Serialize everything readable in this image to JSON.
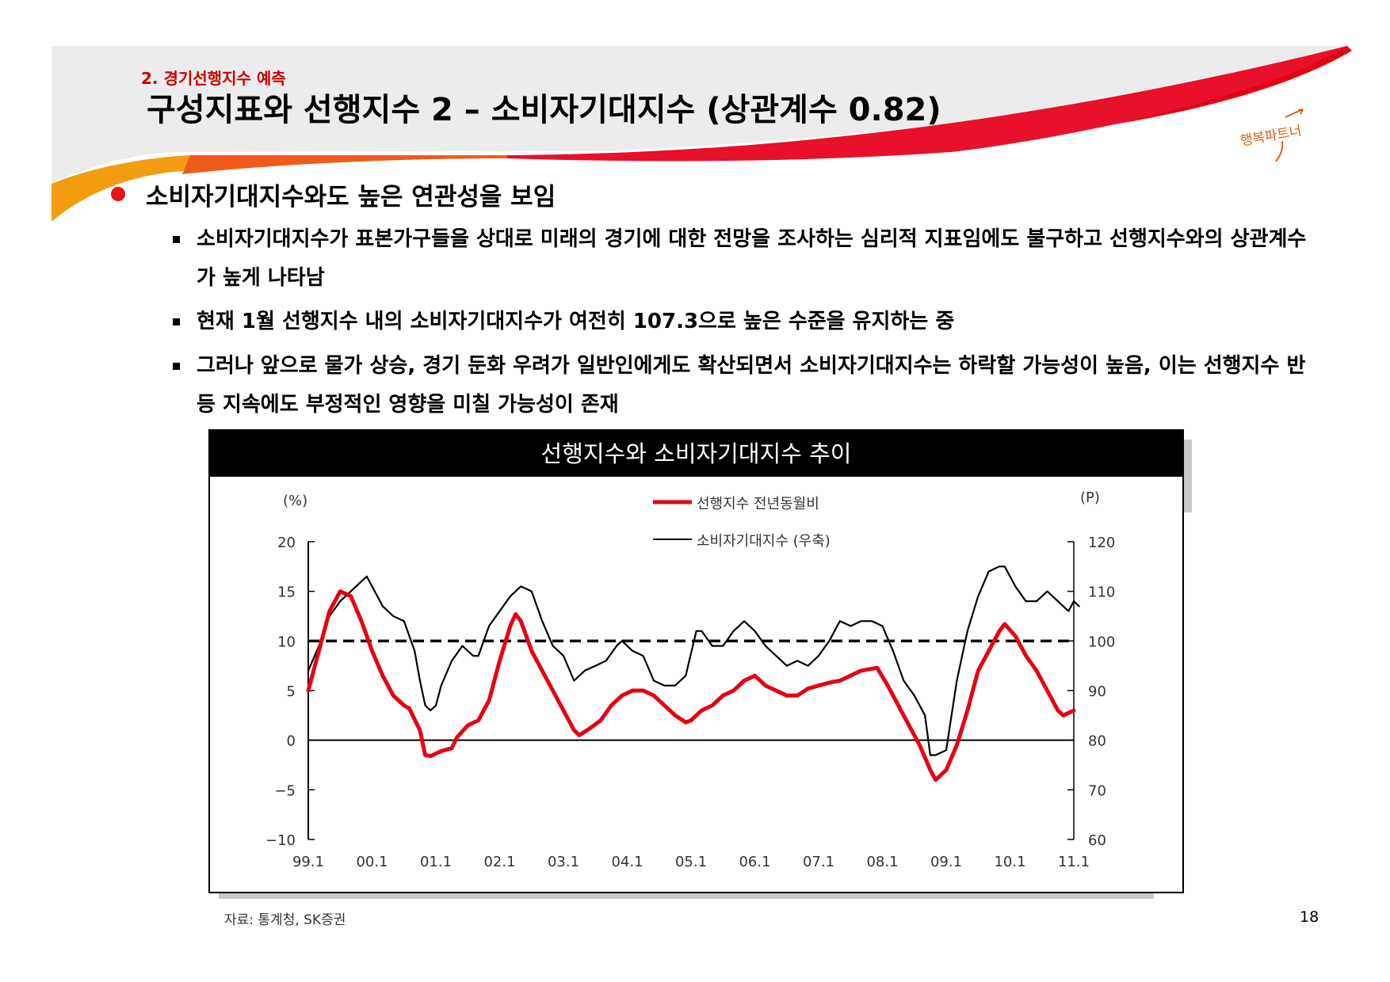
{
  "header": {
    "section_label": "2. 경기선행지수 예측",
    "title": "구성지표와 선행지수 2 – 소비자기대지수 (상관계수 0.82)",
    "logo_text": "행복파트너"
  },
  "content": {
    "main_bullet": "소비자기대지수와도 높은 연관성을 보임",
    "sub_bullets": [
      "소비자기대지수가 표본가구들을 상대로 미래의 경기에 대한 전망을 조사하는 심리적 지표임에도 불구하고 선행지수와의 상관계수가 높게 나타남",
      "현재 1월 선행지수 내의 소비자기대지수가 여전히 107.3으로 높은 수준을 유지하는 중",
      "그러나 앞으로 물가 상승, 경기 둔화 우려가 일반인에게도 확산되면서 소비자기대지수는 하락할 가능성이 높음, 이는 선행지수 반등 지속에도 부정적인 영향을 미칠 가능성이 존재"
    ]
  },
  "colors": {
    "accent_red": "#e60012",
    "accent_orange": "#f39c12",
    "black": "#000000"
  },
  "chart_data": {
    "type": "line",
    "title": "선행지수와 소비자기대지수 추이",
    "left_axis_unit": "(%)",
    "right_axis_unit": "(P)",
    "left_ticks": [
      "20",
      "15",
      "10",
      "5",
      "0",
      "−5",
      "−10"
    ],
    "right_ticks": [
      "120",
      "110",
      "100",
      "90",
      "80",
      "70",
      "60"
    ],
    "x_ticks": [
      "99.1",
      "00.1",
      "01.1",
      "02.1",
      "03.1",
      "04.1",
      "05.1",
      "06.1",
      "07.1",
      "08.1",
      "09.1",
      "10.1",
      "11.1"
    ],
    "ylim_left": [
      -10,
      20
    ],
    "ylim_right": [
      60,
      120
    ],
    "reference_line": {
      "axis": "left",
      "value": 10,
      "style": "dashed"
    },
    "legend": [
      "선행지수 전년동월비",
      "소비자기대지수 (우축)"
    ],
    "series": [
      {
        "name": "선행지수 전년동월비",
        "axis": "left",
        "color": "#e60012",
        "points": [
          [
            0,
            5
          ],
          [
            2,
            9
          ],
          [
            4,
            13
          ],
          [
            6,
            15
          ],
          [
            8,
            14.5
          ],
          [
            10,
            12
          ],
          [
            12,
            9
          ],
          [
            14,
            6.5
          ],
          [
            16,
            4.5
          ],
          [
            18,
            3.5
          ],
          [
            19,
            3.2
          ],
          [
            21,
            1
          ],
          [
            22,
            -1.5
          ],
          [
            23,
            -1.6
          ],
          [
            25,
            -1.1
          ],
          [
            27,
            -0.8
          ],
          [
            28,
            0.3
          ],
          [
            30,
            1.5
          ],
          [
            32,
            2
          ],
          [
            34,
            4
          ],
          [
            36,
            8
          ],
          [
            38,
            11.5
          ],
          [
            39,
            12.7
          ],
          [
            40,
            12
          ],
          [
            42,
            9
          ],
          [
            44,
            7
          ],
          [
            46,
            5
          ],
          [
            48,
            3
          ],
          [
            50,
            1
          ],
          [
            51,
            0.5
          ],
          [
            53,
            1.2
          ],
          [
            55,
            2
          ],
          [
            57,
            3.5
          ],
          [
            59,
            4.5
          ],
          [
            61,
            5
          ],
          [
            63,
            5
          ],
          [
            65,
            4.5
          ],
          [
            67,
            3.5
          ],
          [
            69,
            2.5
          ],
          [
            71,
            1.8
          ],
          [
            72,
            2
          ],
          [
            74,
            3
          ],
          [
            76,
            3.5
          ],
          [
            78,
            4.5
          ],
          [
            80,
            5
          ],
          [
            82,
            6
          ],
          [
            84,
            6.5
          ],
          [
            86,
            5.5
          ],
          [
            88,
            5
          ],
          [
            90,
            4.5
          ],
          [
            92,
            4.5
          ],
          [
            94,
            5.2
          ],
          [
            96,
            5.5
          ],
          [
            98,
            5.8
          ],
          [
            100,
            6
          ],
          [
            102,
            6.5
          ],
          [
            104,
            7
          ],
          [
            106,
            7.2
          ],
          [
            107,
            7.3
          ],
          [
            109,
            5.5
          ],
          [
            111,
            3.5
          ],
          [
            113,
            1.5
          ],
          [
            115,
            -0.5
          ],
          [
            117,
            -3
          ],
          [
            118,
            -4
          ],
          [
            120,
            -3
          ],
          [
            122,
            -0.5
          ],
          [
            124,
            3
          ],
          [
            126,
            7
          ],
          [
            128,
            9
          ],
          [
            130,
            11
          ],
          [
            131,
            11.7
          ],
          [
            133,
            10.5
          ],
          [
            135,
            8.5
          ],
          [
            137,
            7
          ],
          [
            139,
            5
          ],
          [
            141,
            3
          ],
          [
            142,
            2.5
          ],
          [
            144,
            3
          ]
        ]
      },
      {
        "name": "소비자기대지수 (우축)",
        "axis": "right",
        "color": "#000000",
        "points": [
          [
            0,
            94
          ],
          [
            2,
            99
          ],
          [
            4,
            105
          ],
          [
            6,
            108
          ],
          [
            8,
            110
          ],
          [
            10,
            112
          ],
          [
            11,
            113
          ],
          [
            12,
            111
          ],
          [
            14,
            107
          ],
          [
            16,
            105
          ],
          [
            18,
            104
          ],
          [
            20,
            98
          ],
          [
            21,
            92
          ],
          [
            22,
            87
          ],
          [
            23,
            86
          ],
          [
            24,
            87
          ],
          [
            25,
            91
          ],
          [
            27,
            96
          ],
          [
            29,
            99
          ],
          [
            31,
            97
          ],
          [
            32,
            97
          ],
          [
            34,
            103
          ],
          [
            36,
            106
          ],
          [
            38,
            109
          ],
          [
            40,
            111
          ],
          [
            42,
            110
          ],
          [
            44,
            104
          ],
          [
            46,
            99
          ],
          [
            48,
            97
          ],
          [
            50,
            92
          ],
          [
            52,
            94
          ],
          [
            54,
            95
          ],
          [
            56,
            96
          ],
          [
            58,
            99
          ],
          [
            59,
            100
          ],
          [
            61,
            98
          ],
          [
            63,
            97
          ],
          [
            65,
            92
          ],
          [
            67,
            91
          ],
          [
            69,
            91
          ],
          [
            71,
            93
          ],
          [
            73,
            102
          ],
          [
            74,
            102
          ],
          [
            76,
            99
          ],
          [
            78,
            99
          ],
          [
            80,
            102
          ],
          [
            82,
            104
          ],
          [
            84,
            102
          ],
          [
            86,
            99
          ],
          [
            88,
            97
          ],
          [
            90,
            95
          ],
          [
            92,
            96
          ],
          [
            94,
            95
          ],
          [
            96,
            97
          ],
          [
            98,
            100
          ],
          [
            100,
            104
          ],
          [
            102,
            103
          ],
          [
            104,
            104
          ],
          [
            106,
            104
          ],
          [
            108,
            103
          ],
          [
            110,
            98
          ],
          [
            112,
            92
          ],
          [
            114,
            89
          ],
          [
            116,
            85
          ],
          [
            117,
            77
          ],
          [
            118,
            77
          ],
          [
            120,
            78
          ],
          [
            122,
            92
          ],
          [
            124,
            102
          ],
          [
            126,
            109
          ],
          [
            128,
            114
          ],
          [
            130,
            115
          ],
          [
            131,
            115
          ],
          [
            133,
            111
          ],
          [
            135,
            108
          ],
          [
            137,
            108
          ],
          [
            139,
            110
          ],
          [
            141,
            108
          ],
          [
            143,
            106
          ],
          [
            144,
            108
          ],
          [
            145,
            107
          ]
        ]
      }
    ]
  },
  "footer": {
    "source": "자료: 통계청, SK증권",
    "page_number": "18"
  }
}
